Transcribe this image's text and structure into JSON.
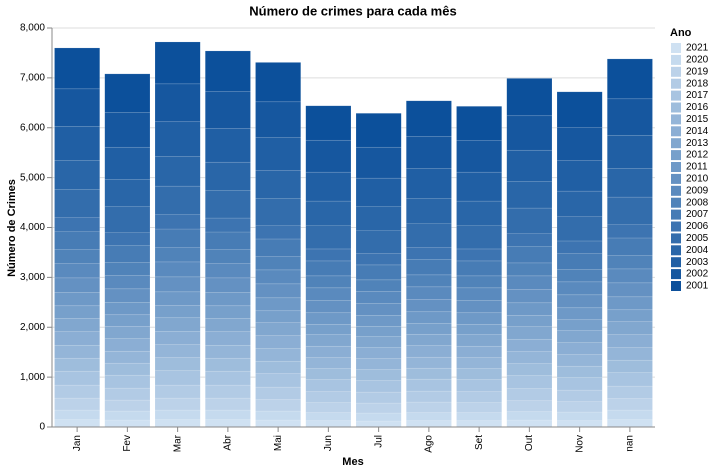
{
  "chart_data": {
    "type": "stacked_bar",
    "title": "Número de crimes para cada mês",
    "x_label": "Mes",
    "y_label": "Número de Crimes",
    "legend_title": "Ano",
    "legend_position": "right",
    "grid": true,
    "categories": [
      "Jan",
      "Fev",
      "Mar",
      "Abr",
      "Mai",
      "Jun",
      "Jul",
      "Ago",
      "Set",
      "Out",
      "Nov",
      "nan"
    ],
    "ylim": [
      0,
      8000
    ],
    "yticks": [
      0,
      {
        "value": 1000,
        "label": "1,000"
      },
      {
        "value": 2000,
        "label": "2,000"
      },
      {
        "value": 3000,
        "label": "3,000"
      },
      {
        "value": 4000,
        "label": "4,000"
      },
      {
        "value": 5000,
        "label": "5,000"
      },
      {
        "value": 6000,
        "label": "6,000"
      },
      {
        "value": 7000,
        "label": "7,000"
      },
      {
        "value": 8000,
        "label": "8,000"
      }
    ],
    "series": [
      {
        "name": "2021",
        "color": "#cfe1f2",
        "values": [
          150,
          140,
          150,
          150,
          140,
          130,
          120,
          130,
          130,
          140,
          130,
          150
        ]
      },
      {
        "name": "2020",
        "color": "#c5daee",
        "values": [
          190,
          180,
          190,
          190,
          180,
          160,
          160,
          160,
          160,
          170,
          170,
          190
        ]
      },
      {
        "name": "2019",
        "color": "#bcd2e9",
        "values": [
          240,
          220,
          240,
          240,
          230,
          200,
          200,
          210,
          200,
          220,
          210,
          230
        ]
      },
      {
        "name": "2018",
        "color": "#b2cbe5",
        "values": [
          260,
          240,
          260,
          260,
          250,
          220,
          220,
          220,
          220,
          240,
          230,
          250
        ]
      },
      {
        "name": "2017",
        "color": "#a8c4e1",
        "values": [
          280,
          260,
          290,
          280,
          270,
          240,
          230,
          240,
          240,
          260,
          250,
          270
        ]
      },
      {
        "name": "2016",
        "color": "#9ebddc",
        "values": [
          260,
          240,
          260,
          260,
          250,
          220,
          220,
          220,
          220,
          240,
          230,
          250
        ]
      },
      {
        "name": "2015",
        "color": "#94b5d8",
        "values": [
          260,
          240,
          260,
          260,
          250,
          220,
          220,
          220,
          220,
          240,
          230,
          250
        ]
      },
      {
        "name": "2014",
        "color": "#8baed4",
        "values": [
          270,
          250,
          270,
          270,
          260,
          230,
          220,
          230,
          230,
          250,
          240,
          260
        ]
      },
      {
        "name": "2013",
        "color": "#81a7cf",
        "values": [
          270,
          250,
          270,
          270,
          260,
          230,
          220,
          230,
          230,
          250,
          240,
          260
        ]
      },
      {
        "name": "2012",
        "color": "#77a0cb",
        "values": [
          250,
          230,
          250,
          250,
          240,
          210,
          210,
          220,
          210,
          230,
          220,
          240
        ]
      },
      {
        "name": "2011",
        "color": "#6e99c7",
        "values": [
          270,
          250,
          270,
          270,
          260,
          230,
          220,
          230,
          230,
          250,
          240,
          260
        ]
      },
      {
        "name": "2010",
        "color": "#6491c2",
        "values": [
          290,
          270,
          300,
          290,
          280,
          250,
          240,
          250,
          250,
          270,
          260,
          280
        ]
      },
      {
        "name": "2009",
        "color": "#5a8abe",
        "values": [
          290,
          270,
          300,
          290,
          280,
          250,
          240,
          250,
          250,
          270,
          260,
          280
        ]
      },
      {
        "name": "2008",
        "color": "#5083b9",
        "values": [
          280,
          260,
          290,
          280,
          270,
          240,
          230,
          240,
          240,
          260,
          250,
          270
        ]
      },
      {
        "name": "2007",
        "color": "#477cb5",
        "values": [
          360,
          340,
          370,
          350,
          350,
          300,
          300,
          310,
          300,
          330,
          320,
          350
        ]
      },
      {
        "name": "2006",
        "color": "#3d74b1",
        "values": [
          280,
          260,
          290,
          280,
          270,
          240,
          230,
          240,
          240,
          260,
          250,
          270
        ]
      },
      {
        "name": "2005",
        "color": "#336dac",
        "values": [
          560,
          520,
          570,
          550,
          540,
          470,
          460,
          480,
          470,
          510,
          490,
          550
        ]
      },
      {
        "name": "2004",
        "color": "#2966a8",
        "values": [
          580,
          540,
          590,
          570,
          560,
          490,
          480,
          500,
          490,
          530,
          510,
          570
        ]
      },
      {
        "name": "2003",
        "color": "#205fa4",
        "values": [
          690,
          650,
          700,
          680,
          660,
          580,
          570,
          600,
          580,
          630,
          610,
          670
        ]
      },
      {
        "name": "2002",
        "color": "#16579f",
        "values": [
          750,
          700,
          760,
          740,
          720,
          640,
          620,
          650,
          630,
          690,
          660,
          730
        ]
      },
      {
        "name": "2001",
        "color": "#0c509b",
        "values": [
          820,
          770,
          840,
          810,
          790,
          690,
          680,
          710,
          690,
          750,
          720,
          800
        ]
      }
    ]
  }
}
